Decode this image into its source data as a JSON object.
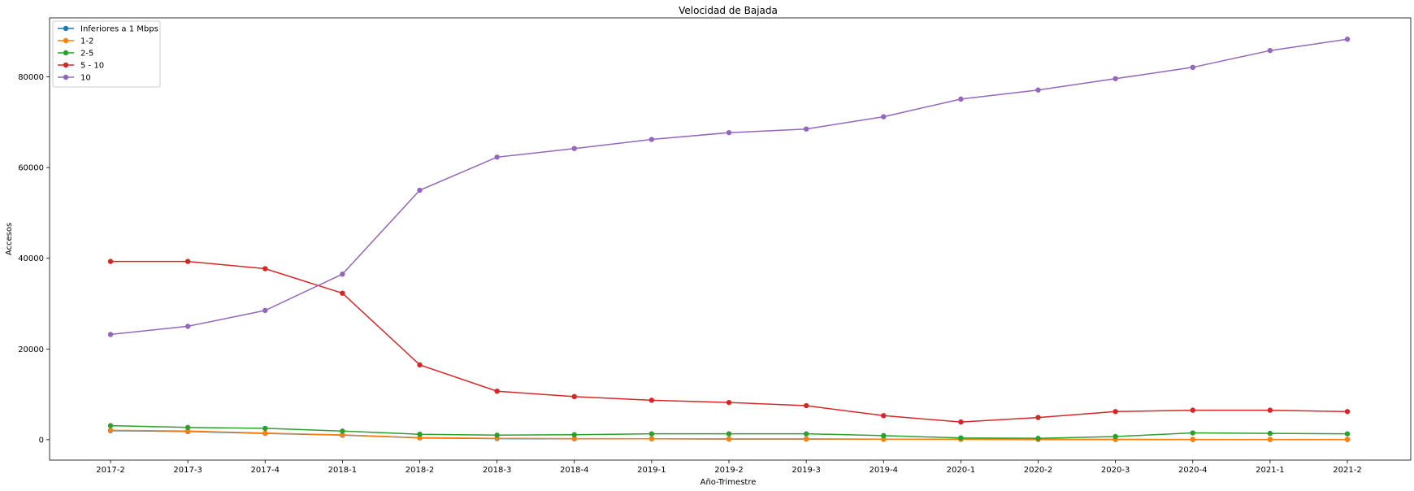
{
  "chart_data": {
    "type": "line",
    "title": "Velocidad de Bajada",
    "xlabel": "Año-Trimestre",
    "ylabel": "Accesos",
    "categories": [
      "2017-2",
      "2017-3",
      "2017-4",
      "2018-1",
      "2018-2",
      "2018-3",
      "2018-4",
      "2019-1",
      "2019-2",
      "2019-3",
      "2019-4",
      "2020-1",
      "2020-2",
      "2020-3",
      "2020-4",
      "2021-1",
      "2021-2"
    ],
    "ylim": [
      -4500,
      93000
    ],
    "yticks": [
      0,
      20000,
      40000,
      60000,
      80000
    ],
    "ytick_labels": [
      "0",
      "20000",
      "40000",
      "60000",
      "80000"
    ],
    "grid": false,
    "legend_position": "top-left",
    "series": [
      {
        "name": "Inferiores a 1 Mbps",
        "color": "#1f77b4",
        "values": [
          2000,
          1800,
          1400,
          1000,
          400,
          250,
          200,
          200,
          150,
          150,
          100,
          80,
          60,
          50,
          40,
          40,
          40
        ]
      },
      {
        "name": "1-2",
        "color": "#ff7f0e",
        "values": [
          2100,
          1900,
          1450,
          1050,
          450,
          300,
          230,
          220,
          180,
          170,
          120,
          100,
          80,
          70,
          60,
          60,
          60
        ]
      },
      {
        "name": "2-5",
        "color": "#2ca02c",
        "values": [
          3100,
          2700,
          2500,
          1900,
          1200,
          1000,
          1100,
          1300,
          1300,
          1300,
          900,
          400,
          300,
          700,
          1500,
          1400,
          1300
        ]
      },
      {
        "name": "5 - 10",
        "color": "#d62728",
        "values": [
          39300,
          39300,
          37700,
          32300,
          16500,
          10700,
          9500,
          8700,
          8200,
          7500,
          5300,
          3900,
          4900,
          6200,
          6500,
          6500,
          6200
        ]
      },
      {
        "name": "10",
        "color": "#9467bd",
        "values": [
          23200,
          25000,
          28500,
          36500,
          55000,
          62300,
          64200,
          66200,
          67700,
          68500,
          71200,
          75100,
          77100,
          79600,
          82100,
          85800,
          88300
        ]
      }
    ]
  }
}
